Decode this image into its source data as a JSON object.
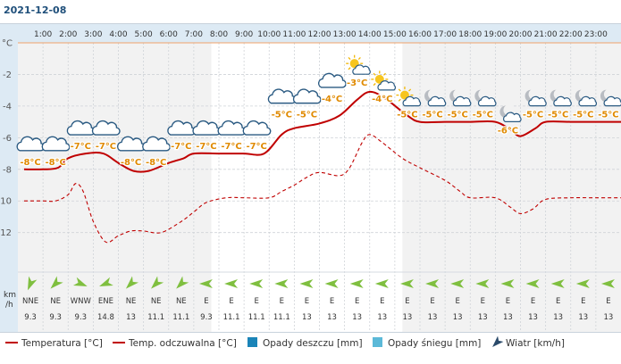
{
  "date": "2021-12-08",
  "wind_unit": [
    "km",
    "/h"
  ],
  "legend": [
    {
      "label": "Temperatura [°C]"
    },
    {
      "label": "Temp. odczuwalna [°C]"
    },
    {
      "label": "Opady deszczu [mm]"
    },
    {
      "label": "Opady śniegu [mm]"
    },
    {
      "label": "Wiatr [km/h]"
    }
  ],
  "colors": {
    "temperature": "#c00000",
    "feels_like": "#c00000",
    "rain": "#1a84b8",
    "snow": "#5bb9d8",
    "wind_arrow": "#7fbf3f",
    "freezing_line": "#f0a36a",
    "night_band": "#f2f2f2",
    "day_band": "#ffffff",
    "grid": "#cfd3d8",
    "header_bg": "#ddeaf4",
    "label": "#e08a00"
  },
  "chart_data": {
    "type": "line",
    "x": [
      "1:00",
      "2:00",
      "3:00",
      "4:00",
      "5:00",
      "6:00",
      "7:00",
      "8:00",
      "9:00",
      "10:00",
      "11:00",
      "12:00",
      "13:00",
      "14:00",
      "15:00",
      "16:00",
      "17:00",
      "18:00",
      "19:00",
      "20:00",
      "21:00",
      "22:00",
      "23:00"
    ],
    "y_ticks": [
      "°C",
      "-2",
      "-4",
      "-6",
      "-8",
      "-10",
      "-12"
    ],
    "ylim": [
      -14.5,
      0
    ],
    "daylight_hours": [
      8,
      15
    ],
    "series": [
      {
        "key": "temperature",
        "points": [
          [
            0.25,
            -8
          ],
          [
            1,
            -8
          ],
          [
            1.6,
            -7.9
          ],
          [
            2,
            -7.3
          ],
          [
            2.7,
            -7
          ],
          [
            3.4,
            -7
          ],
          [
            4,
            -7.6
          ],
          [
            4.6,
            -8.1
          ],
          [
            5.2,
            -8.1
          ],
          [
            6,
            -7.6
          ],
          [
            6.6,
            -7.3
          ],
          [
            7,
            -7
          ],
          [
            8,
            -7
          ],
          [
            9,
            -7
          ],
          [
            9.8,
            -7
          ],
          [
            10.5,
            -5.8
          ],
          [
            11,
            -5.4
          ],
          [
            12,
            -5.1
          ],
          [
            12.8,
            -4.6
          ],
          [
            13.5,
            -3.6
          ],
          [
            14,
            -3.1
          ],
          [
            14.6,
            -3.5
          ],
          [
            15.5,
            -4.6
          ],
          [
            16,
            -5
          ],
          [
            17,
            -5
          ],
          [
            18,
            -5
          ],
          [
            19,
            -5
          ],
          [
            19.6,
            -5.5
          ],
          [
            20,
            -5.9
          ],
          [
            20.6,
            -5.4
          ],
          [
            21,
            -5
          ],
          [
            22,
            -5
          ],
          [
            23,
            -5
          ],
          [
            24,
            -5
          ]
        ],
        "labels": [
          "-8°C",
          "-8°C",
          "-7°C",
          "-7°C",
          "-8°C",
          "-8°C",
          "-7°C",
          "-7°C",
          "-7°C",
          "-7°C",
          "-5°C",
          "-5°C",
          "-4°C",
          "-3°C",
          "-4°C",
          "-5°C",
          "-5°C",
          "-5°C",
          "-5°C",
          "-6°C",
          "-5°C",
          "-5°C",
          "-5°C",
          "-5°C"
        ]
      },
      {
        "key": "feels_like",
        "points": [
          [
            0.25,
            -10
          ],
          [
            1,
            -10
          ],
          [
            1.5,
            -10
          ],
          [
            2,
            -9.6
          ],
          [
            2.3,
            -8.9
          ],
          [
            2.6,
            -9.4
          ],
          [
            3,
            -11.3
          ],
          [
            3.5,
            -12.6
          ],
          [
            4,
            -12.2
          ],
          [
            4.5,
            -11.9
          ],
          [
            5,
            -11.9
          ],
          [
            5.7,
            -12
          ],
          [
            6.5,
            -11.3
          ],
          [
            7,
            -10.7
          ],
          [
            7.5,
            -10.1
          ],
          [
            8.3,
            -9.8
          ],
          [
            9,
            -9.8
          ],
          [
            10,
            -9.8
          ],
          [
            10.5,
            -9.4
          ],
          [
            11,
            -9
          ],
          [
            11.5,
            -8.5
          ],
          [
            12,
            -8.2
          ],
          [
            12.8,
            -8.4
          ],
          [
            13.2,
            -7.9
          ],
          [
            13.7,
            -6.3
          ],
          [
            14,
            -5.8
          ],
          [
            14.5,
            -6.3
          ],
          [
            15.3,
            -7.3
          ],
          [
            16,
            -7.9
          ],
          [
            17,
            -8.7
          ],
          [
            17.6,
            -9.4
          ],
          [
            18,
            -9.8
          ],
          [
            19,
            -9.8
          ],
          [
            19.6,
            -10.4
          ],
          [
            20,
            -10.8
          ],
          [
            20.5,
            -10.5
          ],
          [
            21,
            -9.9
          ],
          [
            22,
            -9.8
          ],
          [
            23,
            -9.8
          ],
          [
            24,
            -9.8
          ]
        ]
      }
    ],
    "weather_icons": [
      "cloud",
      "cloud",
      "cloud",
      "cloud",
      "cloud",
      "cloud",
      "cloud",
      "cloud",
      "cloud",
      "cloud",
      "cloud",
      "cloud",
      "cloud",
      "sun-cloud",
      "sun-cloud",
      "sun-cloud",
      "moon-cloud",
      "moon-cloud",
      "moon-cloud",
      "moon-cloud",
      "moon-cloud",
      "moon-cloud",
      "moon-cloud",
      "moon-cloud"
    ],
    "wind": {
      "directions": [
        "NNE",
        "NE",
        "WNW",
        "ENE",
        "NE",
        "NE",
        "NE",
        "E",
        "E",
        "E",
        "E",
        "E",
        "E",
        "E",
        "E",
        "E",
        "E",
        "E",
        "E",
        "E",
        "E",
        "E",
        "E",
        "E"
      ],
      "speeds": [
        "9.3",
        "9.3",
        "9.3",
        "14.8",
        "13",
        "11.1",
        "11.1",
        "9.3",
        "11.1",
        "11.1",
        "11.1",
        "13",
        "13",
        "13",
        "13",
        "13",
        "13",
        "13",
        "13",
        "13",
        "13",
        "13",
        "13",
        "13"
      ]
    }
  }
}
